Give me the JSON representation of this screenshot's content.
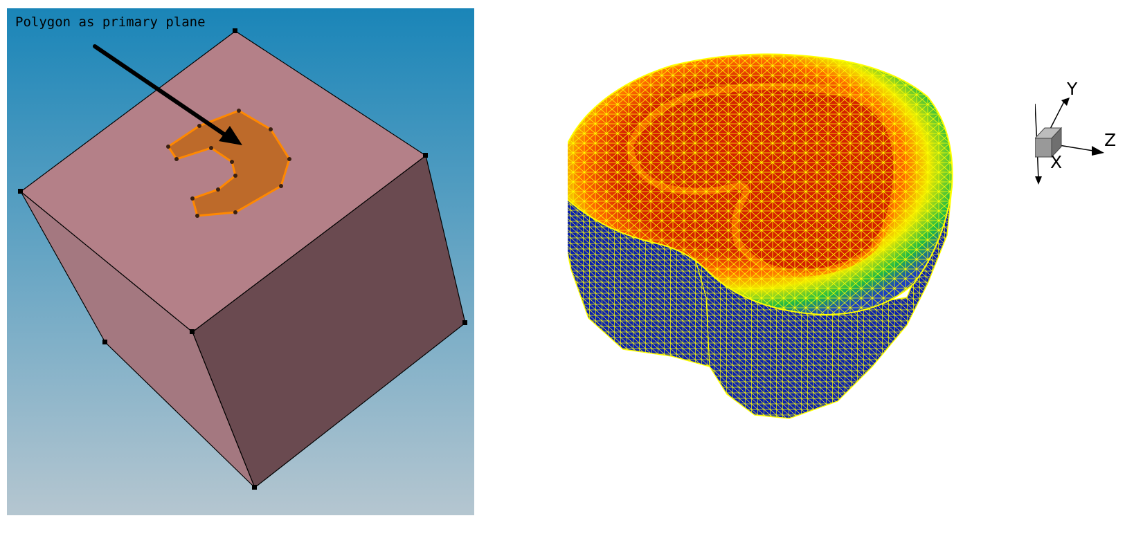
{
  "left_view": {
    "caption": "Polygon as primary plane",
    "colors": {
      "background_top": "#1a85b8",
      "background_bottom": "#b5c6d0",
      "cube_top_face": "#b48088",
      "cube_left_face": "#a47880",
      "cube_right_face": "#6a4a50",
      "polygon_fill": "#bd6a2a",
      "polygon_edge": "#ff8800"
    }
  },
  "right_view": {
    "colors": {
      "mesh_lines": "#ffff00",
      "side_fill": "#0a1fb0",
      "contour_red": "#d42000",
      "contour_yellow": "#f0e800",
      "contour_green": "#22bb44"
    }
  },
  "triad": {
    "y_label": "Y",
    "z_label": "Z",
    "x_label": "X"
  }
}
